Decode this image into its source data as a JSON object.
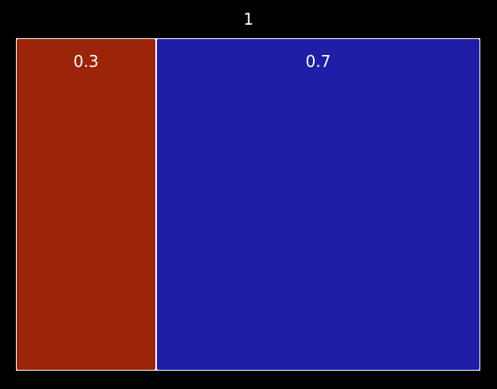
{
  "chart_data": {
    "type": "treemap",
    "title": "",
    "root": {
      "label": "1",
      "value": 1
    },
    "children": [
      {
        "label": "0.3",
        "value": 0.3,
        "color": "#9b2409"
      },
      {
        "label": "0.7",
        "value": 0.7,
        "color": "#1e1ea7"
      }
    ],
    "background": "#000000",
    "border_color": "#ffffff"
  }
}
